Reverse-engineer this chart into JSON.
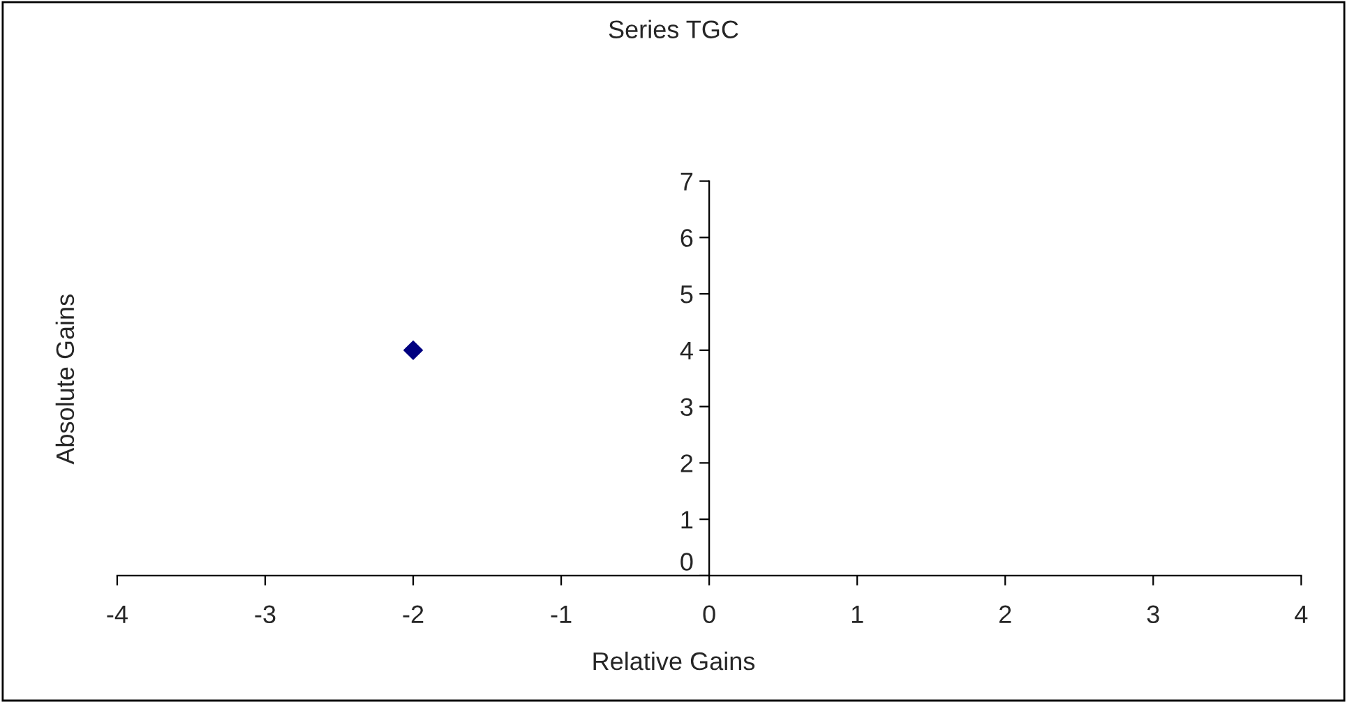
{
  "chart_data": {
    "type": "scatter",
    "title": "Series TGC",
    "xlabel": "Relative Gains",
    "ylabel": "Absolute Gains",
    "x": [
      -2
    ],
    "series": [
      {
        "color": "#000080",
        "values": [
          4
        ]
      }
    ],
    "marker": "diamond",
    "grid": false,
    "legend": false,
    "xlim": [
      -4,
      4
    ],
    "ylim": [
      0,
      7
    ],
    "xticks": [
      -4,
      -3,
      -2,
      -1,
      0,
      1,
      2,
      3,
      4
    ],
    "yticks": [
      0,
      1,
      2,
      3,
      4,
      5,
      6,
      7
    ]
  }
}
